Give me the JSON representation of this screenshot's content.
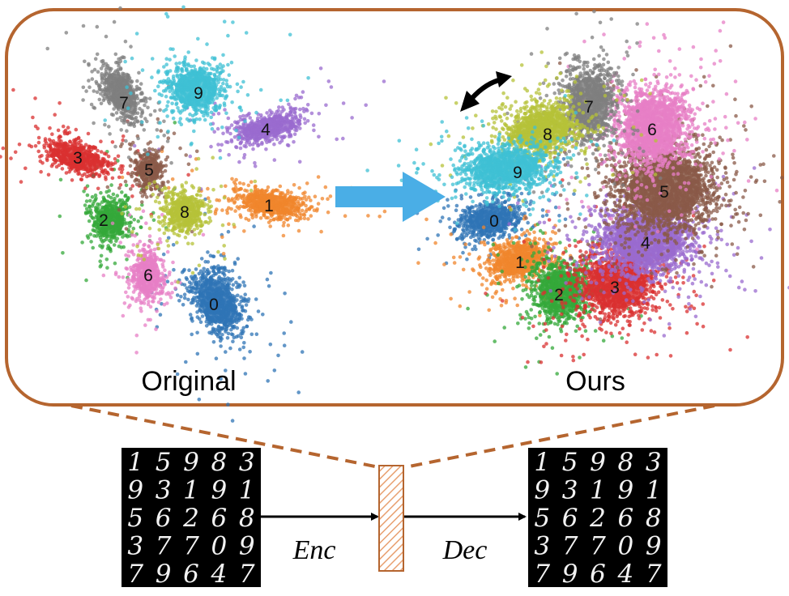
{
  "captions": {
    "left_panel": "Original",
    "right_panel": "Ours"
  },
  "operators": {
    "encoder": "Enc",
    "decoder": "Dec"
  },
  "digit_grid": [
    [
      "1",
      "5",
      "9",
      "8",
      "3"
    ],
    [
      "9",
      "3",
      "1",
      "9",
      "1"
    ],
    [
      "5",
      "6",
      "2",
      "6",
      "8"
    ],
    [
      "3",
      "7",
      "7",
      "0",
      "9"
    ],
    [
      "7",
      "9",
      "6",
      "4",
      "7"
    ]
  ],
  "colors": {
    "frame": "#b5652f",
    "transition_arrow": "#4aaee6",
    "bottleneck_hatch": "#e8a070",
    "grid_background": "#000000",
    "clusters": {
      "0": "#2f74b6",
      "1": "#f0862c",
      "2": "#34a83a",
      "3": "#d93030",
      "4": "#9a6bcf",
      "5": "#8a5a48",
      "6": "#e77fc6",
      "7": "#7f7f7f",
      "8": "#b5c238",
      "9": "#3fc0d4"
    }
  },
  "clusters_original": [
    "0",
    "1",
    "2",
    "3",
    "4",
    "5",
    "6",
    "7",
    "8",
    "9"
  ],
  "clusters_ours": [
    "0",
    "1",
    "2",
    "3",
    "4",
    "5",
    "6",
    "7",
    "8",
    "9"
  ],
  "icons": [
    "rotate-double-arrow-icon",
    "right-arrow-icon"
  ]
}
